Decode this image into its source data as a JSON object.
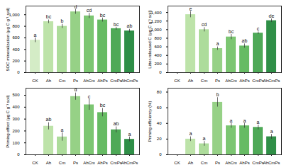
{
  "chart_data": [
    {
      "type": "bar",
      "y_label": "SOC mineralization (μg C g⁻¹ soil)",
      "categories": [
        "CK",
        "Ah",
        "Cm",
        "Ps",
        "AhCm",
        "AhPs",
        "CmPs",
        "AhCmPs"
      ],
      "values": [
        560,
        880,
        800,
        1050,
        980,
        910,
        760,
        720
      ],
      "errors": [
        40,
        30,
        35,
        40,
        45,
        35,
        25,
        30
      ],
      "letters": [
        "a",
        "bc",
        "b",
        "d",
        "cd",
        "bc",
        "bc",
        "ab"
      ],
      "colors": [
        "#d4ecc6",
        "#bde3a9",
        "#addc9b",
        "#96d186",
        "#7cc672",
        "#66bb63",
        "#4ea957",
        "#2f8f47"
      ],
      "ylim": [
        0,
        1150
      ],
      "yticks": [
        0,
        200,
        400,
        600,
        800,
        1000
      ]
    },
    {
      "type": "bar",
      "y_label": "Litter-released C (μg C g⁻¹ soil)",
      "categories": [
        "CK",
        "Ah",
        "Cm",
        "Ps",
        "AhCm",
        "AhPs",
        "CmPs",
        "AhCmPs"
      ],
      "values": [
        0,
        1350,
        1000,
        560,
        830,
        620,
        920,
        1210
      ],
      "errors": [
        null,
        70,
        50,
        40,
        60,
        50,
        30,
        40
      ],
      "letters": [
        null,
        "e",
        "cd",
        "a",
        "bc",
        "ab",
        "c",
        "de"
      ],
      "colors": [
        "#d4ecc6",
        "#bde3a9",
        "#addc9b",
        "#96d186",
        "#7cc672",
        "#66bb63",
        "#4ea957",
        "#2f8f47"
      ],
      "ylim": [
        0,
        1550
      ],
      "yticks": [
        0,
        200,
        400,
        600,
        800,
        1000,
        1200,
        1400
      ]
    },
    {
      "type": "bar",
      "y_label": "Priming effect (μg C g⁻¹ soil)",
      "categories": [
        "CK",
        "Ah",
        "Cm",
        "Ps",
        "AhCm",
        "AhPs",
        "CmPs",
        "AhCmPs"
      ],
      "values": [
        0,
        240,
        150,
        490,
        420,
        355,
        210,
        130
      ],
      "errors": [
        null,
        30,
        35,
        30,
        45,
        35,
        25,
        20
      ],
      "letters": [
        null,
        "ab",
        "a",
        "d",
        "c",
        "bc",
        "ab",
        "a"
      ],
      "colors": [
        "#d4ecc6",
        "#bde3a9",
        "#addc9b",
        "#96d186",
        "#7cc672",
        "#66bb63",
        "#4ea957",
        "#2f8f47"
      ],
      "ylim": [
        0,
        560
      ],
      "yticks": [
        0,
        100,
        200,
        300,
        400,
        500
      ]
    },
    {
      "type": "bar",
      "y_label": "Priming efficiency (%)",
      "categories": [
        "CK",
        "Ah",
        "Cm",
        "Ps",
        "AhCm",
        "AhPs",
        "CmPs",
        "AhCmPs"
      ],
      "values": [
        0,
        20,
        14,
        67,
        37,
        37,
        35,
        23
      ],
      "errors": [
        null,
        3,
        3,
        6,
        3,
        3,
        3,
        3
      ],
      "letters": [
        null,
        "a",
        "a",
        "b",
        "a",
        "a",
        "a",
        "a"
      ],
      "colors": [
        "#d4ecc6",
        "#bde3a9",
        "#addc9b",
        "#96d186",
        "#7cc672",
        "#66bb63",
        "#4ea957",
        "#2f8f47"
      ],
      "ylim": [
        0,
        85
      ],
      "yticks": [
        0,
        20,
        40,
        60,
        80
      ]
    }
  ]
}
